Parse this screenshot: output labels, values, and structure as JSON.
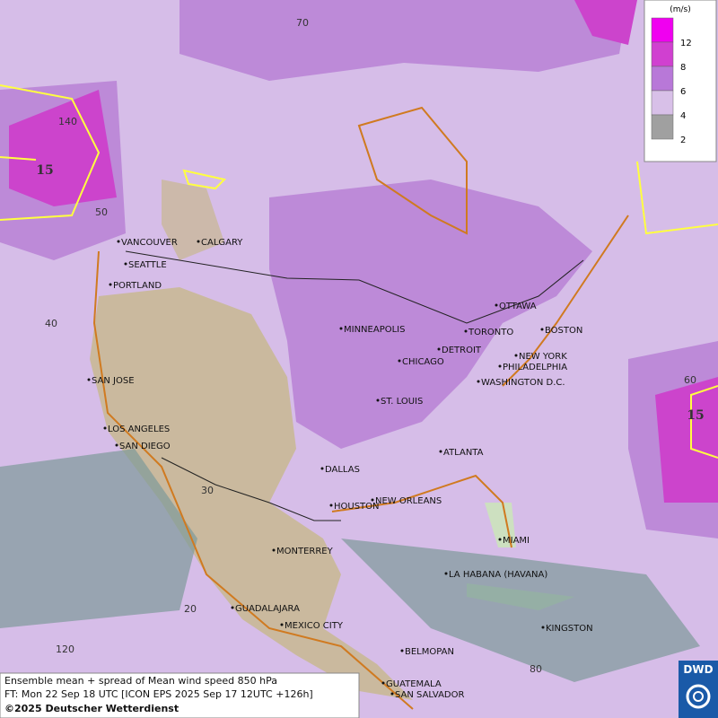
{
  "map": {
    "cities": [
      "VANCOUVER",
      "CALGARY",
      "SEATTLE",
      "PORTLAND",
      "MINNEAPOLIS",
      "TORONTO",
      "OTTAWA",
      "BOSTON",
      "DETROIT",
      "NEW YORK",
      "PHILADELPHIA",
      "CHICAGO",
      "WASHINGTON D.C.",
      "ST. LOUIS",
      "SAN JOSE",
      "LOS ANGELES",
      "SAN DIEGO",
      "ATLANTA",
      "DALLAS",
      "HOUSTON",
      "NEW ORLEANS",
      "MIAMI",
      "MONTERREY",
      "LA HABANA (HAVANA)",
      "GUADALAJARA",
      "MEXICO CITY",
      "KINGSTON",
      "BELMOPAN",
      "GUATEMALA",
      "SAN SALVADOR"
    ],
    "grid_labels": [
      "70",
      "140",
      "50",
      "40",
      "30",
      "20",
      "120",
      "60",
      "80"
    ],
    "contour_labels": [
      "15",
      "15"
    ]
  },
  "legend": {
    "unit": "(m/s)",
    "levels": [
      "12",
      "8",
      "6",
      "4",
      "2"
    ],
    "colors": [
      "#f000f0",
      "#d040d0",
      "#b878d8",
      "#d8c0e8",
      "#a0a0a0"
    ]
  },
  "footer": {
    "lines": [
      "Ensemble mean + spread of Mean wind speed 850 hPa",
      "FT: Mon 22 Sep 18 UTC [ICON EPS 2025 Sep 17 12UTC +126h]",
      "©2025 Deutscher Wetterdienst"
    ]
  },
  "logo": "DWD"
}
